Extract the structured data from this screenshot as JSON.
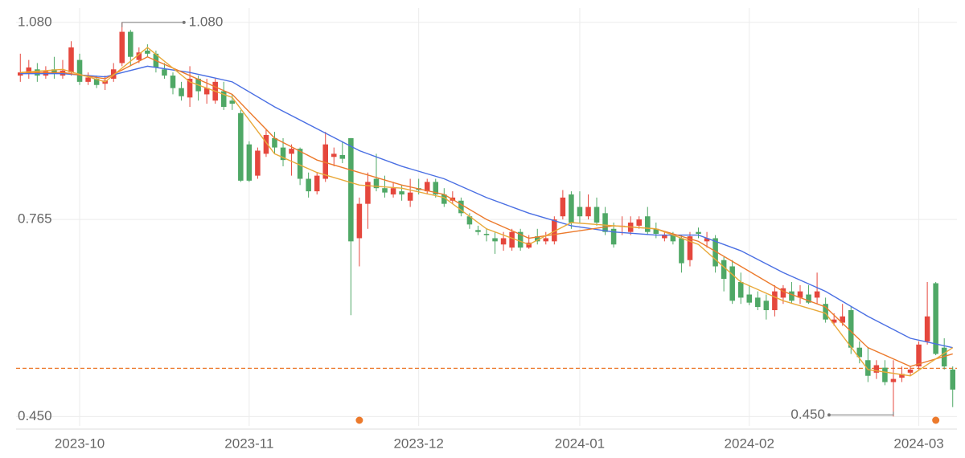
{
  "chart_data": {
    "type": "candlestick",
    "ohlc": [
      [
        0.995,
        1.03,
        0.985,
        1.0
      ],
      [
        0.998,
        1.02,
        0.99,
        1.008
      ],
      [
        1.005,
        1.015,
        0.985,
        0.995
      ],
      [
        0.995,
        1.01,
        0.99,
        1.002
      ],
      [
        1.005,
        1.025,
        0.99,
        0.998
      ],
      [
        0.995,
        1.02,
        0.99,
        1.003
      ],
      [
        1.0,
        1.05,
        0.995,
        1.04
      ],
      [
        1.02,
        1.03,
        0.98,
        0.985
      ],
      [
        0.985,
        1.0,
        0.98,
        0.992
      ],
      [
        0.99,
        0.995,
        0.975,
        0.98
      ],
      [
        0.982,
        0.995,
        0.972,
        0.987
      ],
      [
        0.99,
        1.015,
        0.985,
        1.005
      ],
      [
        1.015,
        1.08,
        1.01,
        1.065
      ],
      [
        1.065,
        1.068,
        1.01,
        1.025
      ],
      [
        1.02,
        1.04,
        1.015,
        1.032
      ],
      [
        1.035,
        1.045,
        1.025,
        1.03
      ],
      [
        1.03,
        1.035,
        1.0,
        1.008
      ],
      [
        1.005,
        1.015,
        0.99,
        0.995
      ],
      [
        0.995,
        1.0,
        0.965,
        0.975
      ],
      [
        0.975,
        0.985,
        0.955,
        0.962
      ],
      [
        0.96,
        1.01,
        0.945,
        0.99
      ],
      [
        0.99,
        0.995,
        0.955,
        0.97
      ],
      [
        0.965,
        0.99,
        0.95,
        0.975
      ],
      [
        0.955,
        0.99,
        0.95,
        0.985
      ],
      [
        0.97,
        0.985,
        0.94,
        0.945
      ],
      [
        0.955,
        0.965,
        0.94,
        0.95
      ],
      [
        0.935,
        0.94,
        0.825,
        0.827
      ],
      [
        0.885,
        0.89,
        0.825,
        0.827
      ],
      [
        0.835,
        0.88,
        0.83,
        0.875
      ],
      [
        0.87,
        0.91,
        0.865,
        0.9
      ],
      [
        0.895,
        0.905,
        0.87,
        0.88
      ],
      [
        0.88,
        0.895,
        0.85,
        0.86
      ],
      [
        0.87,
        0.885,
        0.835,
        0.878
      ],
      [
        0.878,
        0.88,
        0.82,
        0.83
      ],
      [
        0.83,
        0.84,
        0.8,
        0.81
      ],
      [
        0.81,
        0.84,
        0.805,
        0.835
      ],
      [
        0.83,
        0.905,
        0.825,
        0.885
      ],
      [
        0.865,
        0.88,
        0.85,
        0.87
      ],
      [
        0.868,
        0.89,
        0.855,
        0.862
      ],
      [
        0.895,
        0.895,
        0.612,
        0.73
      ],
      [
        0.735,
        0.8,
        0.69,
        0.79
      ],
      [
        0.79,
        0.84,
        0.75,
        0.825
      ],
      [
        0.83,
        0.87,
        0.81,
        0.815
      ],
      [
        0.815,
        0.835,
        0.8,
        0.808
      ],
      [
        0.805,
        0.825,
        0.8,
        0.815
      ],
      [
        0.81,
        0.82,
        0.795,
        0.805
      ],
      [
        0.795,
        0.83,
        0.785,
        0.808
      ],
      [
        0.815,
        0.83,
        0.805,
        0.812
      ],
      [
        0.81,
        0.83,
        0.805,
        0.825
      ],
      [
        0.825,
        0.83,
        0.8,
        0.805
      ],
      [
        0.805,
        0.815,
        0.785,
        0.79
      ],
      [
        0.795,
        0.81,
        0.79,
        0.8
      ],
      [
        0.795,
        0.8,
        0.77,
        0.775
      ],
      [
        0.77,
        0.775,
        0.75,
        0.757
      ],
      [
        0.748,
        0.755,
        0.74,
        0.745
      ],
      [
        0.742,
        0.75,
        0.73,
        0.74
      ],
      [
        0.735,
        0.745,
        0.71,
        0.73
      ],
      [
        0.725,
        0.745,
        0.715,
        0.735
      ],
      [
        0.72,
        0.75,
        0.715,
        0.745
      ],
      [
        0.745,
        0.75,
        0.715,
        0.72
      ],
      [
        0.72,
        0.74,
        0.718,
        0.728
      ],
      [
        0.738,
        0.75,
        0.725,
        0.73
      ],
      [
        0.73,
        0.745,
        0.725,
        0.735
      ],
      [
        0.73,
        0.77,
        0.725,
        0.765
      ],
      [
        0.77,
        0.812,
        0.765,
        0.8
      ],
      [
        0.805,
        0.81,
        0.75,
        0.76
      ],
      [
        0.785,
        0.81,
        0.76,
        0.77
      ],
      [
        0.77,
        0.805,
        0.765,
        0.785
      ],
      [
        0.785,
        0.8,
        0.755,
        0.76
      ],
      [
        0.775,
        0.785,
        0.74,
        0.745
      ],
      [
        0.75,
        0.76,
        0.72,
        0.725
      ],
      [
        0.755,
        0.77,
        0.74,
        0.755
      ],
      [
        0.745,
        0.77,
        0.74,
        0.76
      ],
      [
        0.755,
        0.77,
        0.75,
        0.765
      ],
      [
        0.77,
        0.785,
        0.74,
        0.745
      ],
      [
        0.75,
        0.76,
        0.735,
        0.742
      ],
      [
        0.735,
        0.745,
        0.73,
        0.74
      ],
      [
        0.74,
        0.745,
        0.725,
        0.73
      ],
      [
        0.735,
        0.74,
        0.68,
        0.695
      ],
      [
        0.7,
        0.745,
        0.69,
        0.738
      ],
      [
        0.745,
        0.752,
        0.735,
        0.742
      ],
      [
        0.73,
        0.745,
        0.72,
        0.735
      ],
      [
        0.735,
        0.74,
        0.68,
        0.69
      ],
      [
        0.7,
        0.705,
        0.65,
        0.67
      ],
      [
        0.69,
        0.7,
        0.63,
        0.635
      ],
      [
        0.665,
        0.68,
        0.63,
        0.64
      ],
      [
        0.645,
        0.66,
        0.628,
        0.632
      ],
      [
        0.64,
        0.65,
        0.62,
        0.625
      ],
      [
        0.635,
        0.645,
        0.605,
        0.62
      ],
      [
        0.62,
        0.66,
        0.61,
        0.65
      ],
      [
        0.64,
        0.66,
        0.63,
        0.655
      ],
      [
        0.65,
        0.665,
        0.63,
        0.635
      ],
      [
        0.64,
        0.66,
        0.63,
        0.65
      ],
      [
        0.645,
        0.66,
        0.63,
        0.632
      ],
      [
        0.64,
        0.68,
        0.63,
        0.65
      ],
      [
        0.63,
        0.64,
        0.6,
        0.605
      ],
      [
        0.6,
        0.615,
        0.595,
        0.605
      ],
      [
        0.6,
        0.63,
        0.595,
        0.61
      ],
      [
        0.62,
        0.625,
        0.55,
        0.56
      ],
      [
        0.56,
        0.57,
        0.535,
        0.545
      ],
      [
        0.54,
        0.56,
        0.505,
        0.515
      ],
      [
        0.52,
        0.54,
        0.51,
        0.532
      ],
      [
        0.528,
        0.54,
        0.5,
        0.505
      ],
      [
        0.505,
        0.54,
        0.45,
        0.51
      ],
      [
        0.512,
        0.53,
        0.505,
        0.518
      ],
      [
        0.52,
        0.53,
        0.515,
        0.525
      ],
      [
        0.53,
        0.57,
        0.525,
        0.565
      ],
      [
        0.57,
        0.665,
        0.565,
        0.61
      ],
      [
        0.663,
        0.665,
        0.548,
        0.55
      ],
      [
        0.56,
        0.575,
        0.525,
        0.53
      ],
      [
        0.525,
        0.53,
        0.465,
        0.493
      ]
    ],
    "up_color": "#e5473d",
    "down_color": "#4fa866",
    "lines": [
      {
        "color": "#4a6fe3",
        "x": [
          0,
          5,
          10,
          15,
          20,
          25,
          30,
          35,
          40,
          45,
          50,
          55,
          60,
          65,
          70,
          75,
          80,
          85,
          90,
          95,
          100,
          105,
          110
        ],
        "values": [
          0.998,
          0.998,
          0.993,
          1.01,
          1.0,
          0.985,
          0.945,
          0.91,
          0.875,
          0.85,
          0.83,
          0.8,
          0.775,
          0.755,
          0.745,
          0.74,
          0.74,
          0.715,
          0.68,
          0.65,
          0.61,
          0.575,
          0.56
        ]
      },
      {
        "color": "#ec7a2c",
        "x": [
          0,
          5,
          10,
          15,
          20,
          25,
          30,
          35,
          40,
          45,
          50,
          55,
          60,
          65,
          70,
          75,
          80,
          85,
          90,
          95,
          100,
          105,
          110
        ],
        "values": [
          1.0,
          1.0,
          0.99,
          1.025,
          0.995,
          0.965,
          0.895,
          0.86,
          0.84,
          0.82,
          0.805,
          0.765,
          0.735,
          0.745,
          0.755,
          0.75,
          0.73,
          0.69,
          0.65,
          0.625,
          0.56,
          0.53,
          0.55
        ]
      },
      {
        "color": "#e9a93a",
        "x": [
          0,
          5,
          10,
          15,
          20,
          25,
          30,
          35,
          40,
          45,
          50,
          55,
          60,
          65,
          70,
          75,
          80,
          85,
          90,
          95,
          100,
          105,
          110
        ],
        "values": [
          1.0,
          1.005,
          0.985,
          1.04,
          0.985,
          0.96,
          0.87,
          0.84,
          0.82,
          0.815,
          0.8,
          0.75,
          0.725,
          0.76,
          0.755,
          0.75,
          0.725,
          0.665,
          0.635,
          0.615,
          0.525,
          0.515,
          0.56
        ]
      }
    ],
    "reference_line": 0.527,
    "reference_color": "#ec7a2c",
    "signals": [
      40,
      108
    ],
    "signal_color": "#ec7a2c",
    "max_label": {
      "index": 12,
      "value": 1.08,
      "label": "1.080"
    },
    "min_label": {
      "index": 103,
      "value": 0.45,
      "label": "0.450"
    },
    "xlim": [
      -0.5,
      110.5
    ],
    "xticks": [
      {
        "value": 7,
        "label": "2023-10"
      },
      {
        "value": 27,
        "label": "2023-11"
      },
      {
        "value": 47,
        "label": "2023-12"
      },
      {
        "value": 66,
        "label": "2024-01"
      },
      {
        "value": 86,
        "label": "2024-02"
      },
      {
        "value": 106,
        "label": "2024-03"
      }
    ],
    "ylim": [
      0.435,
      1.103
    ],
    "yticks": [
      {
        "value": 0.45,
        "label": "0.450"
      },
      0.765,
      {
        "value": 1.08,
        "label": "1.080"
      }
    ],
    "grid": true
  }
}
